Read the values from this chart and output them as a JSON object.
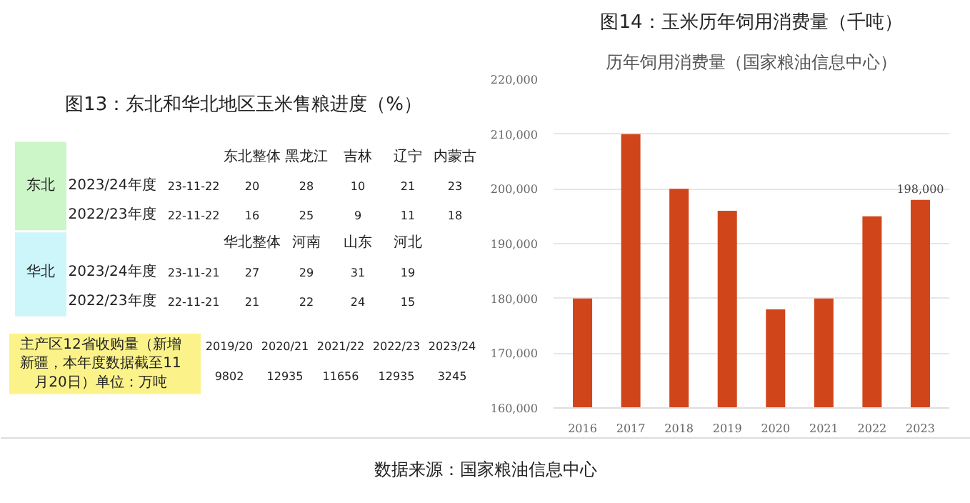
{
  "chart_data": [
    {
      "type": "other",
      "title": "图13：东北和华北地区玉米售粮进度（%）",
      "annotations": [
        "东北整体",
        "黑龙江",
        "吉林",
        "辽宁",
        "内蒙古",
        "东北",
        "2023/24年度",
        "23-11-22",
        "20",
        "28",
        "10",
        "21",
        "23",
        "2022/23年度",
        "22-11-22",
        "16",
        "25",
        "9",
        "11",
        "18",
        "华北整体",
        "河南",
        "山东",
        "河北",
        "华北",
        "2023/24年度",
        "23-11-21",
        "27",
        "29",
        "31",
        "19",
        "2022/23年度",
        "22-11-21",
        "21",
        "22",
        "24",
        "15",
        "主产区12省收购量（新增新疆，本年度数据截至11月20日）单位：万吨",
        "2019/20",
        "2020/21",
        "2021/22",
        "2022/23",
        "2023/24",
        "9802",
        "12935",
        "11656",
        "12935",
        "3245"
      ]
    },
    {
      "type": "bar",
      "title": "图14：玉米历年饲用消费量（千吨）",
      "subtitle": "历年饲用消费量（国家粮油信息中心）",
      "categories": [
        "2016",
        "2017",
        "2018",
        "2019",
        "2020",
        "2021",
        "2022",
        "2023"
      ],
      "values": [
        180000,
        210000,
        200000,
        196000,
        178000,
        180000,
        195000,
        198000
      ],
      "value_labels": [
        null,
        null,
        null,
        null,
        null,
        null,
        null,
        "198,000"
      ],
      "color": "#d0461a",
      "ylim": [
        160000,
        220000
      ],
      "yticks": [
        {
          "value": 160000,
          "label": "160,000"
        },
        {
          "value": 170000,
          "label": "170,000"
        },
        {
          "value": 180000,
          "label": "180,000"
        },
        {
          "value": 190000,
          "label": "190,000"
        },
        {
          "value": 200000,
          "label": "200,000"
        },
        {
          "value": 210000,
          "label": "210,000"
        },
        {
          "value": 220000,
          "label": "220,000"
        }
      ],
      "grid": "y",
      "annotations": [
        "数据来源：国家粮油信息中心"
      ]
    }
  ]
}
